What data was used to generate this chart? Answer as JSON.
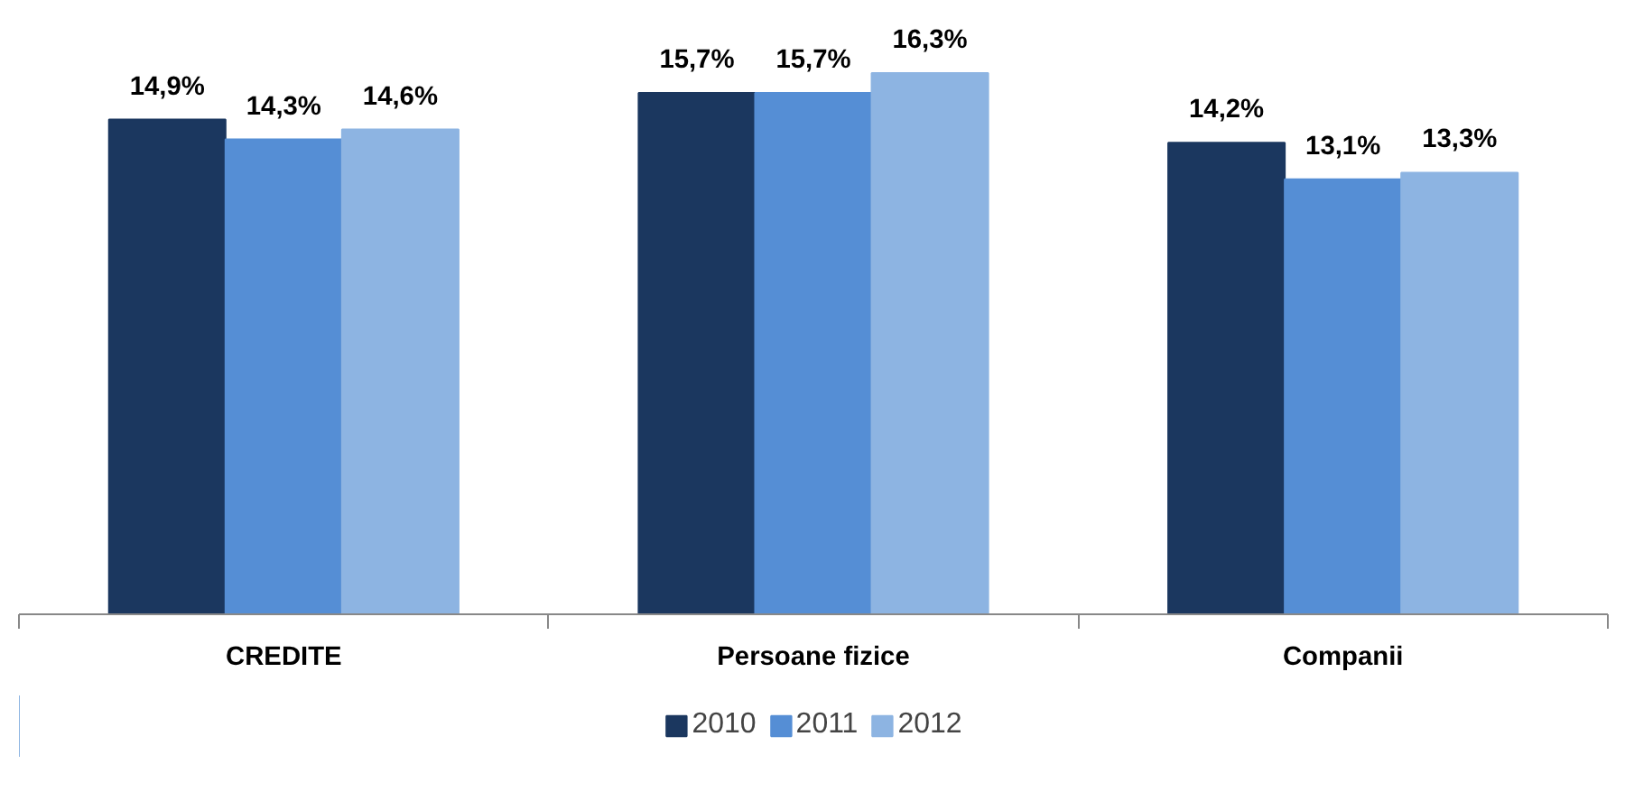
{
  "chart_data": {
    "type": "bar",
    "categories": [
      "CREDITE",
      "Persoane fizice",
      "Companii"
    ],
    "series": [
      {
        "name": "2010",
        "color": "#1b375f",
        "values": [
          14.9,
          15.7,
          14.2
        ],
        "value_labels": [
          "14,9%",
          "15,7%",
          "14,2%"
        ]
      },
      {
        "name": "2011",
        "color": "#558ed5",
        "values": [
          14.3,
          15.7,
          13.1
        ],
        "value_labels": [
          "14,3%",
          "15,7%",
          "13,1%"
        ]
      },
      {
        "name": "2012",
        "color": "#8db4e2",
        "values": [
          14.6,
          16.3,
          13.3
        ],
        "value_labels": [
          "14,6%",
          "16,3%",
          "13,3%"
        ]
      }
    ],
    "legend": "bottom",
    "tick_labels": "x"
  }
}
